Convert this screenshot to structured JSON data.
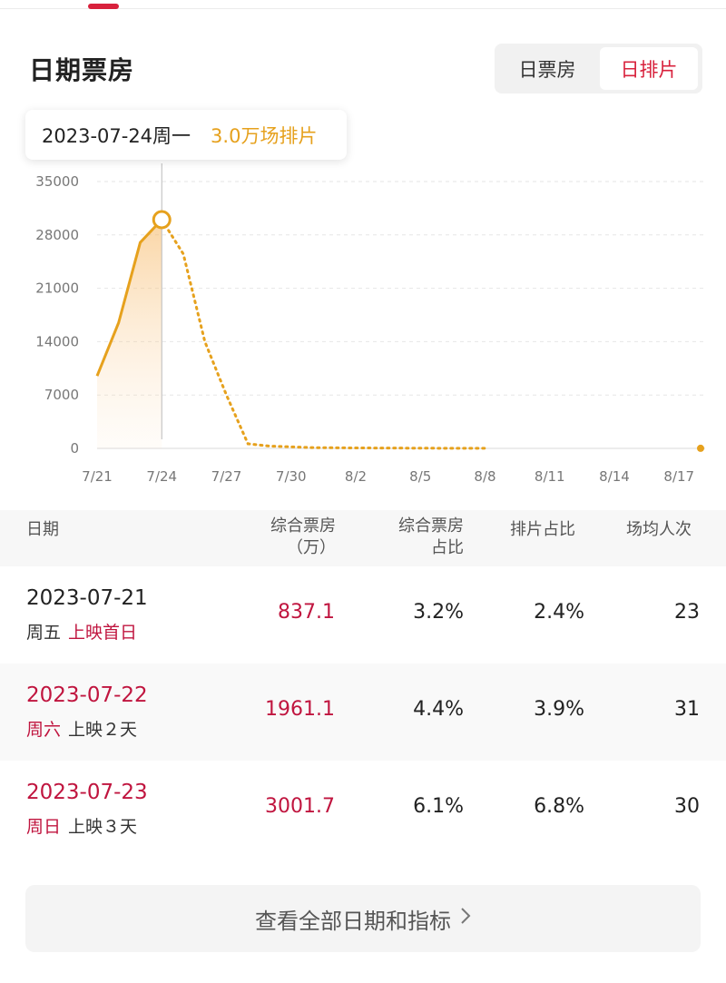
{
  "section": {
    "title": "日期票房"
  },
  "toggle": {
    "left_label": "日票房",
    "right_label": "日排片",
    "selected": "日排片"
  },
  "tooltip": {
    "date": "2023-07-24周一",
    "value": "3.0万场排片"
  },
  "colors": {
    "accent_red": "#d8213c",
    "text_red": "#c0153f",
    "series_orange": "#e6a11d"
  },
  "chart_data": {
    "type": "line",
    "title": "",
    "xlabel": "",
    "ylabel": "",
    "ylim": [
      0,
      35000
    ],
    "y_ticks": [
      "35000",
      "28000",
      "21000",
      "14000",
      "7000",
      "0"
    ],
    "y_tick_values": [
      35000,
      28000,
      21000,
      14000,
      7000,
      0
    ],
    "x_ticks": [
      "7/21",
      "7/24",
      "7/27",
      "7/30",
      "8/2",
      "8/5",
      "8/8",
      "8/11",
      "8/14",
      "8/17"
    ],
    "x_start": "7/21",
    "grid": true,
    "highlight_index": 3,
    "series": [
      {
        "values": [
          9500,
          16500,
          27000,
          30000,
          25500,
          14000,
          7000,
          600,
          300,
          200,
          100,
          80,
          60,
          50,
          40,
          30,
          20,
          10,
          10,
          null,
          null,
          null,
          null,
          null,
          null,
          null,
          null,
          null,
          10
        ],
        "actual_count": 4
      }
    ]
  },
  "table": {
    "headers": [
      {
        "text": "日期"
      },
      {
        "line1": "综合票房",
        "line2": "（万）"
      },
      {
        "line1": "综合票房",
        "line2": "占比"
      },
      {
        "text": "排片占比"
      },
      {
        "text": "场均人次"
      }
    ],
    "rows": [
      {
        "date": "2023-07-21",
        "weekday": "周五",
        "note": "上映首日",
        "box_office": "837.1",
        "box_share": "3.2%",
        "screening_share": "2.4%",
        "avg_attendance": "23"
      },
      {
        "date": "2023-07-22",
        "weekday": "周六",
        "note": "上映２天",
        "box_office": "1961.1",
        "box_share": "4.4%",
        "screening_share": "3.9%",
        "avg_attendance": "31"
      },
      {
        "date": "2023-07-23",
        "weekday": "周日",
        "note": "上映３天",
        "box_office": "3001.7",
        "box_share": "6.1%",
        "screening_share": "6.8%",
        "avg_attendance": "30"
      }
    ]
  },
  "footer": {
    "view_all_label": "查看全部日期和指标",
    "chevron_icon": "chevron-right-icon"
  }
}
